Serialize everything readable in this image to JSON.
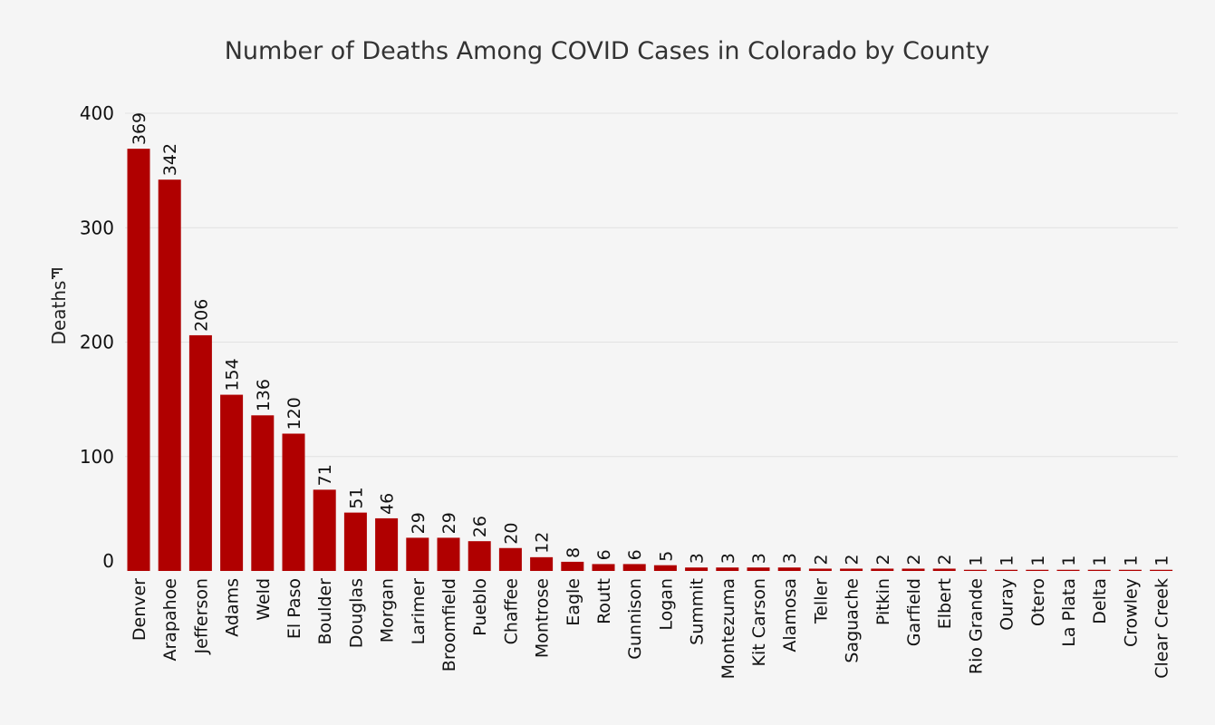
{
  "chart_data": {
    "type": "bar",
    "title": "Number of Deaths Among COVID Cases in Colorado by County",
    "xlabel": "",
    "ylabel": "Deaths",
    "ylim": [
      0,
      400
    ],
    "yticks": [
      0,
      100,
      200,
      300,
      400
    ],
    "grid": true,
    "bar_color": "#b00000",
    "categories": [
      "Denver",
      "Arapahoe",
      "Jefferson",
      "Adams",
      "Weld",
      "El Paso",
      "Boulder",
      "Douglas",
      "Morgan",
      "Larimer",
      "Broomfield",
      "Pueblo",
      "Chaffee",
      "Montrose",
      "Eagle",
      "Routt",
      "Gunnison",
      "Logan",
      "Summit",
      "Montezuma",
      "Kit Carson",
      "Alamosa",
      "Teller",
      "Saguache",
      "Pitkin",
      "Garfield",
      "Elbert",
      "Rio Grande",
      "Ouray",
      "Otero",
      "La Plata",
      "Delta",
      "Crowley",
      "Clear Creek"
    ],
    "values": [
      369,
      342,
      206,
      154,
      136,
      120,
      71,
      51,
      46,
      29,
      29,
      26,
      20,
      12,
      8,
      6,
      6,
      5,
      3,
      3,
      3,
      3,
      2,
      2,
      2,
      2,
      2,
      1,
      1,
      1,
      1,
      1,
      1,
      1
    ]
  }
}
